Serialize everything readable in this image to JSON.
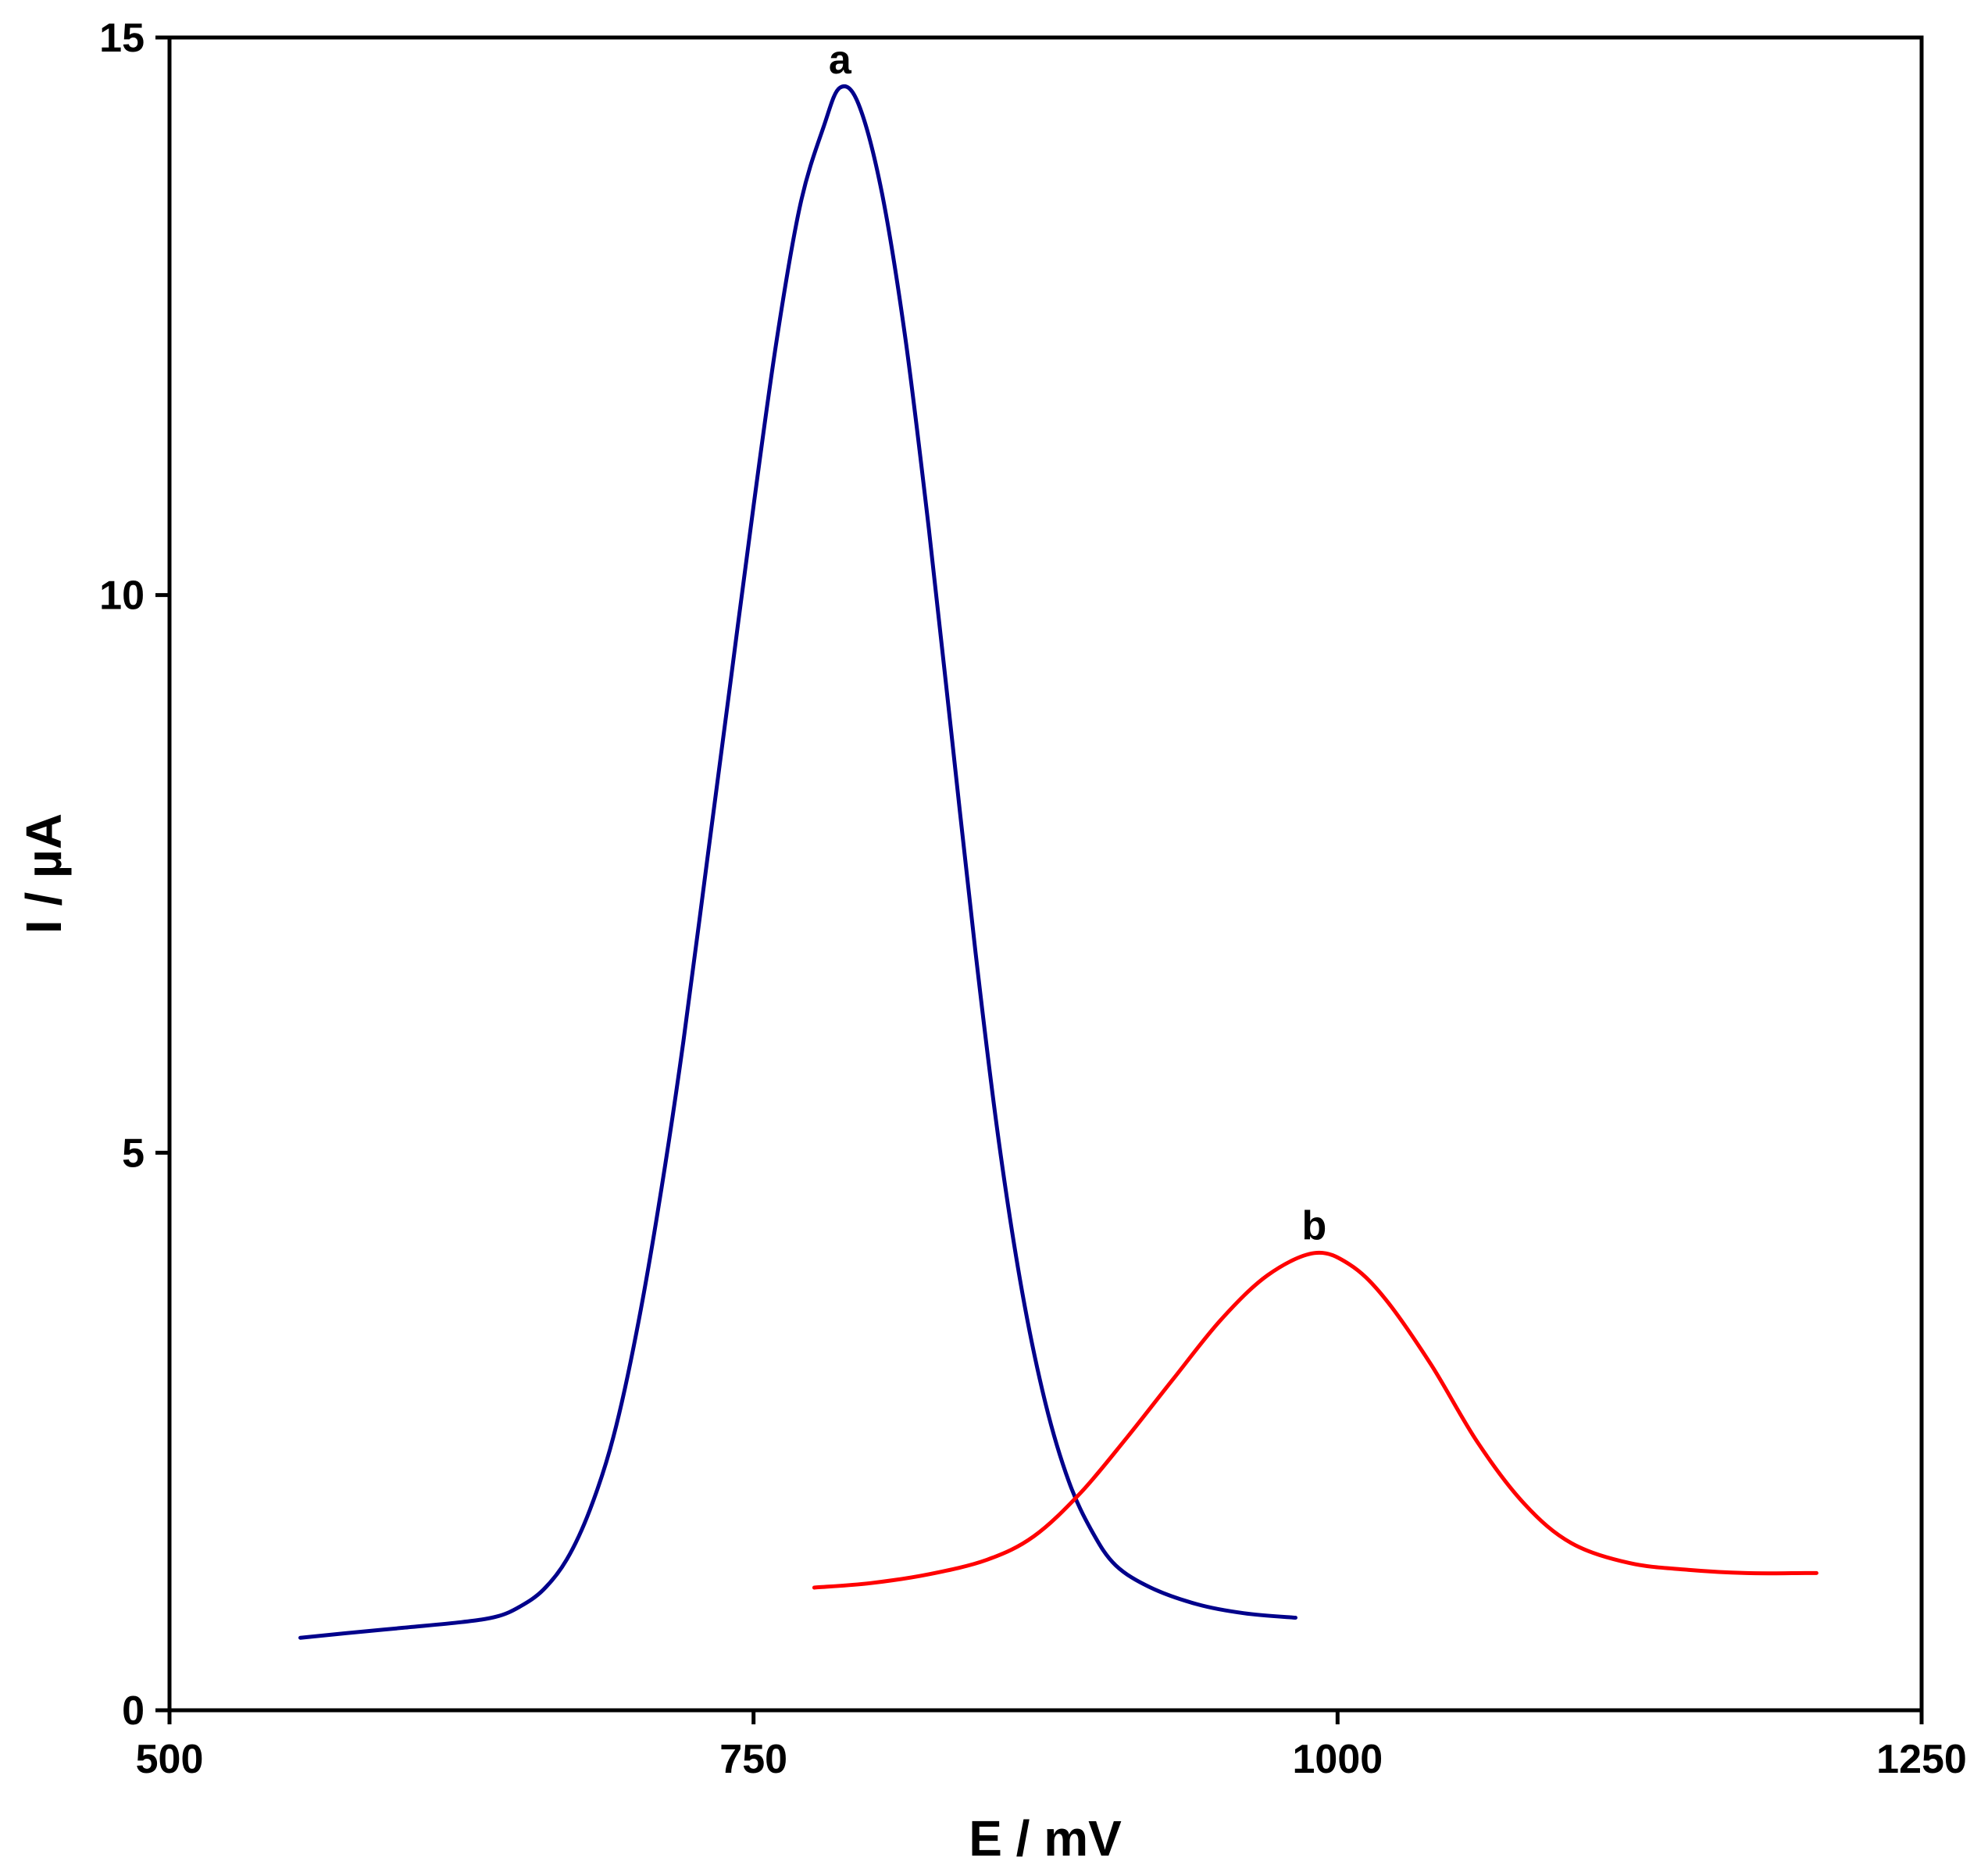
{
  "chart_data": {
    "type": "line",
    "title": "",
    "xlabel": "E / mV",
    "ylabel": "I / µA",
    "xlim": [
      500,
      1250
    ],
    "ylim": [
      0,
      15
    ],
    "xticks": [
      500,
      750,
      1000,
      1250
    ],
    "yticks": [
      0,
      5,
      10,
      15
    ],
    "grid": false,
    "legend": "none",
    "series": [
      {
        "name": "a",
        "color": "#00008B",
        "points": [
          [
            556,
            0.65
          ],
          [
            575,
            0.69
          ],
          [
            600,
            0.74
          ],
          [
            625,
            0.79
          ],
          [
            640,
            0.84
          ],
          [
            650,
            0.93
          ],
          [
            660,
            1.08
          ],
          [
            670,
            1.35
          ],
          [
            680,
            1.8
          ],
          [
            690,
            2.45
          ],
          [
            700,
            3.4
          ],
          [
            710,
            4.6
          ],
          [
            720,
            6.0
          ],
          [
            730,
            7.6
          ],
          [
            740,
            9.2
          ],
          [
            750,
            10.8
          ],
          [
            760,
            12.3
          ],
          [
            770,
            13.5
          ],
          [
            780,
            14.2
          ],
          [
            787,
            14.55
          ],
          [
            795,
            14.4
          ],
          [
            805,
            13.6
          ],
          [
            815,
            12.3
          ],
          [
            825,
            10.6
          ],
          [
            835,
            8.7
          ],
          [
            845,
            6.8
          ],
          [
            855,
            5.1
          ],
          [
            865,
            3.75
          ],
          [
            875,
            2.75
          ],
          [
            885,
            2.05
          ],
          [
            895,
            1.6
          ],
          [
            905,
            1.3
          ],
          [
            920,
            1.1
          ],
          [
            940,
            0.95
          ],
          [
            960,
            0.87
          ],
          [
            982,
            0.83
          ]
        ]
      },
      {
        "name": "b",
        "color": "#FF0000",
        "points": [
          [
            776,
            1.1
          ],
          [
            800,
            1.14
          ],
          [
            825,
            1.22
          ],
          [
            850,
            1.35
          ],
          [
            870,
            1.56
          ],
          [
            890,
            1.95
          ],
          [
            910,
            2.45
          ],
          [
            930,
            2.98
          ],
          [
            950,
            3.5
          ],
          [
            970,
            3.9
          ],
          [
            990,
            4.1
          ],
          [
            1005,
            4.0
          ],
          [
            1020,
            3.7
          ],
          [
            1040,
            3.1
          ],
          [
            1060,
            2.4
          ],
          [
            1080,
            1.85
          ],
          [
            1100,
            1.5
          ],
          [
            1125,
            1.32
          ],
          [
            1150,
            1.26
          ],
          [
            1175,
            1.23
          ],
          [
            1200,
            1.23
          ],
          [
            1205,
            1.23
          ]
        ]
      }
    ],
    "annotations": [
      {
        "text": "a",
        "x": 787,
        "y": 14.55
      },
      {
        "text": "b",
        "x": 990,
        "y": 4.1
      }
    ]
  }
}
